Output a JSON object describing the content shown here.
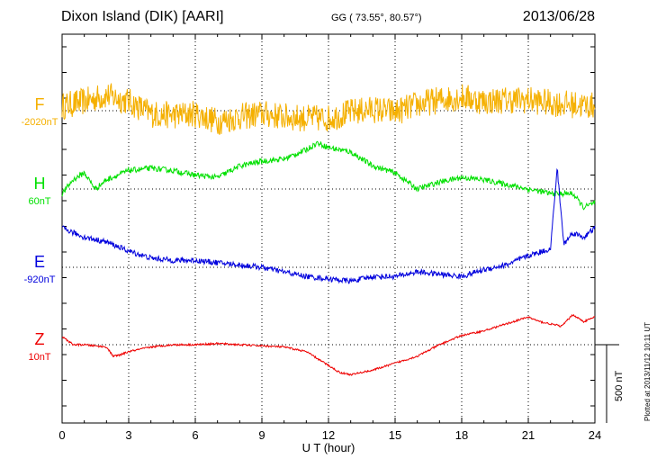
{
  "header": {
    "station": "Dixon Island (DIK)  [AARI]",
    "coords": "GG ( 73.55°,  80.57°)",
    "date": "2013/06/28"
  },
  "components": [
    {
      "name": "F",
      "offset": "-2020nT",
      "color": "#f5b000"
    },
    {
      "name": "H",
      "offset": "60nT",
      "color": "#00e000"
    },
    {
      "name": "E",
      "offset": "-920nT",
      "color": "#0000dd"
    },
    {
      "name": "Z",
      "offset": "10nT",
      "color": "#ee0000"
    }
  ],
  "scale_bar": "500 nT",
  "plotted_note": "Plotted at 2013/11/12 10:11 UT",
  "chart_data": {
    "type": "line",
    "title": "Dixon Island (DIK)  [AARI]",
    "xlabel": "U T (hour)",
    "ylabel": "",
    "xlim": [
      0,
      24
    ],
    "x_ticks": [
      "0",
      "3",
      "6",
      "9",
      "12",
      "15",
      "18",
      "21",
      "24"
    ],
    "grid": true,
    "series": [
      {
        "name": "F",
        "color": "#f5b000",
        "noise": 0.9,
        "x": [
          0,
          1,
          2,
          3,
          4,
          5,
          6,
          7,
          8,
          9,
          10,
          11,
          12,
          13,
          14,
          15,
          16,
          17,
          18,
          19,
          20,
          21,
          22,
          23,
          24
        ],
        "y": [
          6.6,
          6.9,
          7.3,
          6.9,
          6.1,
          6.0,
          6.1,
          5.6,
          5.9,
          6.1,
          5.9,
          5.8,
          5.8,
          6.2,
          6.4,
          6.2,
          6.7,
          7.0,
          7.2,
          6.9,
          7.0,
          7.0,
          6.8,
          6.7,
          6.6
        ]
      },
      {
        "name": "H",
        "color": "#00e000",
        "noise": 0.12,
        "x": [
          0,
          0.5,
          1,
          1.5,
          2,
          3,
          4,
          5,
          6,
          7,
          8,
          9,
          10,
          11,
          11.5,
          12,
          13,
          14,
          15,
          16,
          17,
          18,
          19,
          20,
          21,
          22,
          23,
          23.5,
          24
        ],
        "y": [
          3.4,
          4.0,
          4.3,
          3.6,
          4.0,
          4.4,
          4.5,
          4.4,
          4.2,
          4.1,
          4.6,
          4.8,
          4.9,
          5.3,
          5.6,
          5.4,
          5.2,
          4.6,
          4.3,
          3.6,
          3.9,
          4.1,
          4.0,
          3.8,
          3.6,
          3.4,
          3.4,
          2.8,
          3.0
        ]
      },
      {
        "name": "E",
        "color": "#0000dd",
        "noise": 0.12,
        "x": [
          0,
          1,
          2,
          3,
          4,
          5,
          6,
          7,
          8,
          9,
          10,
          11,
          12,
          13,
          14,
          15,
          16,
          17,
          18,
          19,
          20,
          21,
          22,
          22.3,
          22.6,
          23,
          23.5,
          24
        ],
        "y": [
          3.2,
          2.8,
          2.6,
          2.2,
          1.9,
          1.8,
          1.8,
          1.7,
          1.6,
          1.5,
          1.3,
          1.1,
          1.0,
          0.9,
          1.1,
          1.1,
          1.3,
          1.2,
          1.1,
          1.4,
          1.6,
          2.0,
          2.3,
          5.8,
          2.5,
          3.0,
          2.8,
          3.2
        ]
      },
      {
        "name": "Z",
        "color": "#ee0000",
        "noise": 0.04,
        "x": [
          0,
          0.5,
          1,
          2,
          2.3,
          2.6,
          3,
          4,
          5,
          6,
          7,
          8,
          9,
          10,
          11,
          12,
          12.5,
          13,
          14,
          15,
          16,
          17,
          18,
          19,
          20,
          21,
          21.5,
          22,
          22.5,
          23,
          23.5,
          24
        ],
        "y": [
          0.35,
          0.0,
          0.0,
          -0.1,
          -0.5,
          -0.45,
          -0.3,
          -0.1,
          0.0,
          0.0,
          0.05,
          0.0,
          -0.05,
          -0.1,
          -0.3,
          -0.9,
          -1.2,
          -1.3,
          -1.1,
          -0.8,
          -0.5,
          0.0,
          0.4,
          0.6,
          0.9,
          1.2,
          1.0,
          0.9,
          0.8,
          1.3,
          1.0,
          1.2
        ]
      }
    ]
  }
}
